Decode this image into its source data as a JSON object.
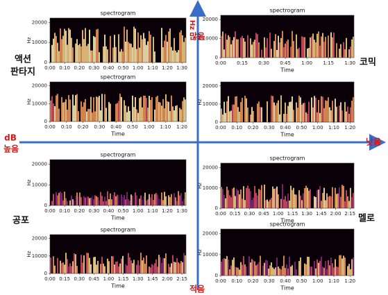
{
  "axis_labels": {
    "top_unit": "Hz",
    "top": "많음",
    "left_unit": "dB",
    "left": "높음",
    "right": "낮음",
    "bottom": "적음"
  },
  "genres": {
    "top_left": [
      "액션",
      "판타지"
    ],
    "top_right": "코믹",
    "bottom_left": "공포",
    "bottom_right": "멜로"
  },
  "panels": [
    {
      "title": "spectrogram",
      "ylabel": "Hz",
      "yticks": [
        "0",
        "10000",
        "20000"
      ],
      "xticks": [
        "0:00",
        "0:10",
        "0:20",
        "0:30",
        "0:40",
        "0:50",
        "1:00",
        "1:10",
        "1:20",
        "1:30"
      ]
    },
    {
      "title": "spectrogram",
      "ylabel": "Hz",
      "yticks": [
        "0",
        "10000",
        "20000"
      ],
      "xticks": [
        "0:00",
        "0:10",
        "0:20",
        "0:30",
        "0:40",
        "0:50",
        "1:00",
        "1:10",
        "1:20"
      ],
      "xlabel": "Time"
    },
    {
      "title": "spectrogram",
      "ylabel": "Hz",
      "yticks": [
        "0",
        "10000",
        "20000"
      ],
      "xticks": [
        "0:00",
        "0:15",
        "0:30",
        "0:45",
        "1:00",
        "1:15",
        "1:30"
      ],
      "xlabel": "Time"
    },
    {
      "ylabel": "Hz",
      "yticks": [
        "0",
        "10000",
        "20000"
      ],
      "xticks": [
        "0:00",
        "0:10",
        "0:20",
        "0:30",
        "0:40",
        "0:50",
        "1:00",
        "1:10",
        "1:20"
      ],
      "xlabel": "Time"
    },
    {
      "title": "spectrogram",
      "ylabel": "Hz",
      "yticks": [
        "0",
        "10000",
        "20000"
      ],
      "xticks": [
        "0:00",
        "0:10",
        "0:20",
        "0:30",
        "0:40",
        "0:50",
        "1:00",
        "1:10",
        "1:20",
        "1:30"
      ],
      "xlabel": "Time"
    },
    {
      "title": "spectrogram",
      "ylabel": "Hz",
      "yticks": [
        "0",
        "10000",
        "20000"
      ],
      "xticks": [
        "0:00",
        "0:15",
        "0:30",
        "0:45",
        "1:00",
        "1:15",
        "1:30",
        "1:45",
        "2:00",
        "2:15"
      ],
      "xlabel": "Time"
    },
    {
      "title": "spectrogram",
      "ylabel": "Hz",
      "yticks": [
        "0",
        "10000",
        "20000"
      ],
      "xticks": [
        "0:00",
        "0:15",
        "0:30",
        "0:45",
        "1:00",
        "1:15",
        "1:30",
        "1:45",
        "2:00",
        "2:15"
      ],
      "xlabel": "Time"
    },
    {
      "title": "spectrogram",
      "ylabel": "Hz",
      "yticks": [
        "0",
        "10000",
        "20000"
      ],
      "xticks": [
        "0:00",
        "0:10",
        "0:20",
        "0:30",
        "0:40",
        "0:50",
        "1:00",
        "1:10",
        "1:20"
      ],
      "xlabel": "Time"
    }
  ]
}
